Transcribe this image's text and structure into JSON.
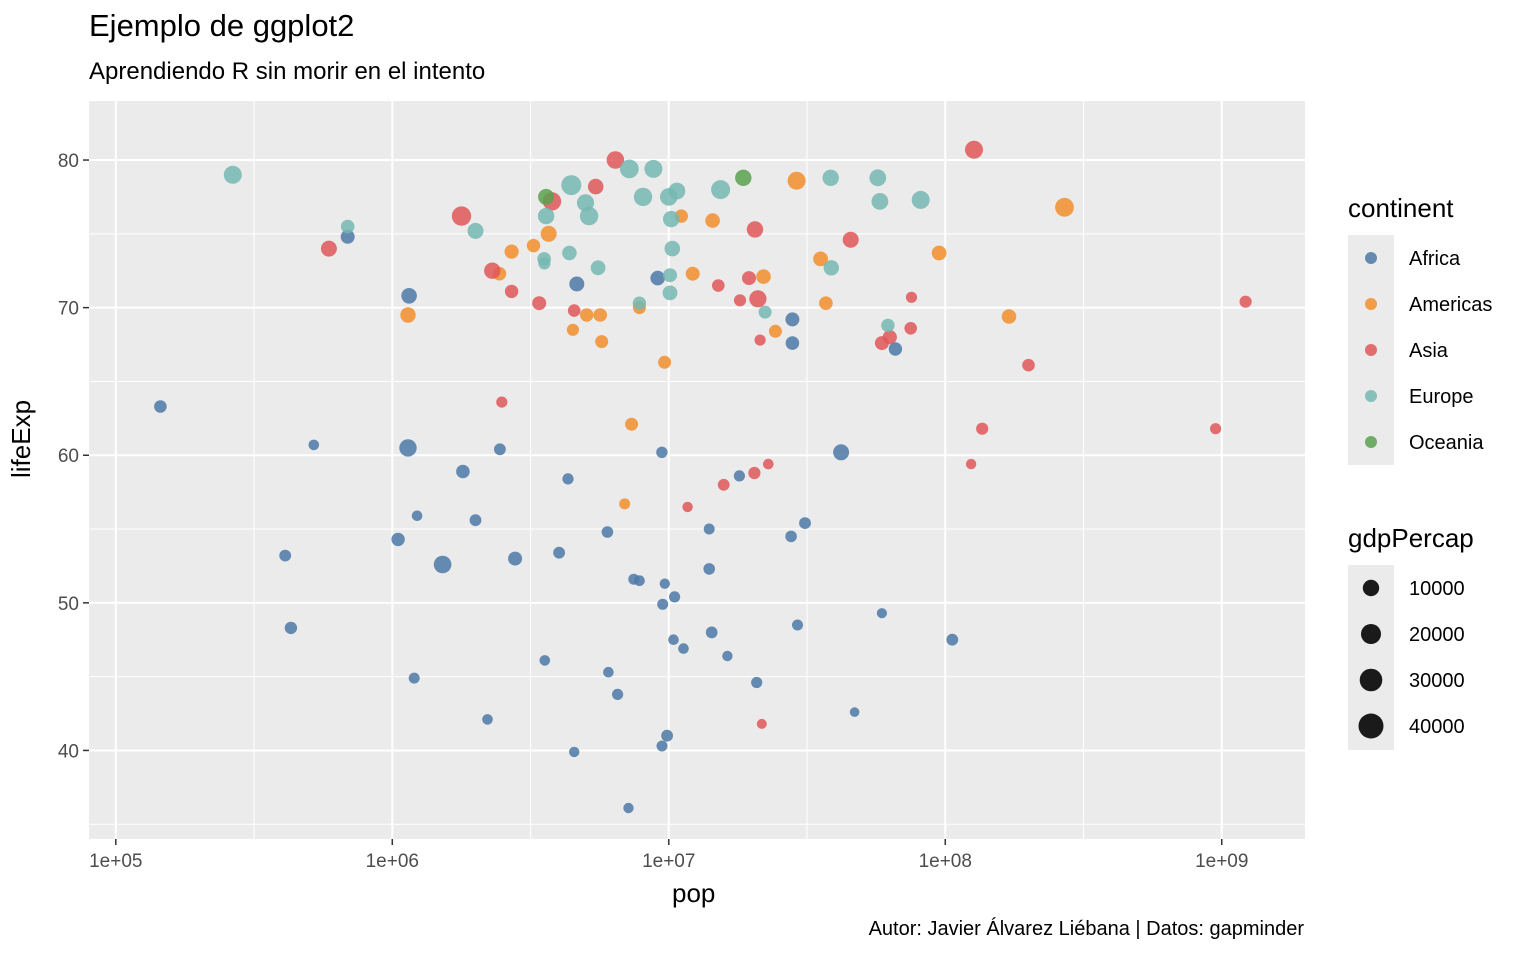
{
  "chart_data": {
    "type": "scatter",
    "title": "Ejemplo de ggplot2",
    "subtitle": "Aprendiendo R sin morir en el intento",
    "caption": "Autor: Javier Álvarez Liébana | Datos: gapminder",
    "xlabel": "pop",
    "ylabel": "lifeExp",
    "x_scale": "log10",
    "xlim": [
      80000,
      2000000000
    ],
    "ylim": [
      34,
      84
    ],
    "x_ticks": [
      100000,
      1000000,
      10000000,
      100000000,
      1000000000
    ],
    "x_tick_labels": [
      "1e+05",
      "1e+06",
      "1e+07",
      "1e+08",
      "1e+09"
    ],
    "y_ticks": [
      40,
      50,
      60,
      70,
      80
    ],
    "y_tick_labels": [
      "40",
      "50",
      "60",
      "70",
      "80"
    ],
    "grid": true,
    "legend_position": "right",
    "color_legend": {
      "title": "continent",
      "entries": [
        {
          "label": "Africa",
          "color": "#4e79a7"
        },
        {
          "label": "Americas",
          "color": "#f28e2b"
        },
        {
          "label": "Asia",
          "color": "#e15759"
        },
        {
          "label": "Europe",
          "color": "#76b7b2"
        },
        {
          "label": "Oceania",
          "color": "#59a14f"
        }
      ]
    },
    "size_legend": {
      "title": "gdpPercap",
      "entries": [
        {
          "label": "10000",
          "value": 10000
        },
        {
          "label": "20000",
          "value": 20000
        },
        {
          "label": "30000",
          "value": 30000
        },
        {
          "label": "40000",
          "value": 40000
        }
      ]
    },
    "series": [
      {
        "name": "Africa",
        "points": [
          [
            145000,
            63.3,
            3000
          ],
          [
            520000,
            60.7,
            1000
          ],
          [
            410000,
            53.2,
            2000
          ],
          [
            430000,
            48.3,
            2800
          ],
          [
            690000,
            74.8,
            5000
          ],
          [
            1150000,
            70.8,
            8000
          ],
          [
            1140000,
            60.5,
            12500
          ],
          [
            1230000,
            55.9,
            1000
          ],
          [
            1200000,
            44.9,
            1200
          ],
          [
            1050000,
            54.3,
            4000
          ],
          [
            1520000,
            52.6,
            13000
          ],
          [
            1800000,
            58.9,
            4500
          ],
          [
            2000000,
            55.6,
            2000
          ],
          [
            2210000,
            42.1,
            1000
          ],
          [
            2450000,
            60.4,
            2000
          ],
          [
            2780000,
            53.0,
            5000
          ],
          [
            3560000,
            46.1,
            1000
          ],
          [
            4010000,
            53.4,
            2000
          ],
          [
            4320000,
            58.4,
            1500
          ],
          [
            4550000,
            39.9,
            800
          ],
          [
            4650000,
            71.6,
            7000
          ],
          [
            6000000,
            54.8,
            1800
          ],
          [
            6050000,
            45.3,
            900
          ],
          [
            6530000,
            43.8,
            1400
          ],
          [
            7150000,
            36.1,
            800
          ],
          [
            7470000,
            51.6,
            1200
          ],
          [
            7830000,
            51.5,
            1100
          ],
          [
            9120000,
            72.0,
            6000
          ],
          [
            9440000,
            60.2,
            1600
          ],
          [
            9510000,
            49.9,
            1300
          ],
          [
            9670000,
            51.3,
            800
          ],
          [
            9450000,
            40.3,
            1200
          ],
          [
            9860000,
            41.0,
            2000
          ],
          [
            10500000,
            50.4,
            1400
          ],
          [
            10400000,
            47.5,
            1000
          ],
          [
            11300000,
            46.9,
            1000
          ],
          [
            14000000,
            55.0,
            1200
          ],
          [
            14000000,
            52.3,
            1800
          ],
          [
            14300000,
            48.0,
            2000
          ],
          [
            16300000,
            46.4,
            800
          ],
          [
            18000000,
            58.6,
            1500
          ],
          [
            20800000,
            44.6,
            1400
          ],
          [
            28000000,
            69.2,
            5000
          ],
          [
            28000000,
            67.6,
            4500
          ],
          [
            27700000,
            54.5,
            1800
          ],
          [
            29200000,
            48.5,
            1300
          ],
          [
            31100000,
            55.4,
            2000
          ],
          [
            42000000,
            60.2,
            9000
          ],
          [
            47000000,
            42.6,
            400
          ],
          [
            59000000,
            49.3,
            700
          ],
          [
            66000000,
            67.2,
            4000
          ],
          [
            106000000,
            47.5,
            2000
          ]
        ]
      },
      {
        "name": "Americas",
        "points": [
          [
            1140000,
            69.5,
            7500
          ],
          [
            2440000,
            72.3,
            4500
          ],
          [
            2700000,
            73.8,
            5500
          ],
          [
            3240000,
            74.2,
            4000
          ],
          [
            3680000,
            75.0,
            9000
          ],
          [
            4500000,
            68.5,
            2500
          ],
          [
            5050000,
            69.5,
            4000
          ],
          [
            5650000,
            69.5,
            4500
          ],
          [
            5720000,
            67.7,
            3500
          ],
          [
            6930000,
            56.7,
            1200
          ],
          [
            7340000,
            62.1,
            3500
          ],
          [
            7830000,
            70.0,
            3500
          ],
          [
            9660000,
            66.3,
            3500
          ],
          [
            11100000,
            76.2,
            4000
          ],
          [
            12200000,
            72.3,
            5000
          ],
          [
            14400000,
            75.9,
            6000
          ],
          [
            22000000,
            72.1,
            6000
          ],
          [
            24300000,
            68.4,
            3500
          ],
          [
            29000000,
            78.6,
            14000
          ],
          [
            35400000,
            73.3,
            6500
          ],
          [
            37000000,
            70.3,
            4500
          ],
          [
            95000000,
            73.7,
            6500
          ],
          [
            170000000,
            69.4,
            6000
          ],
          [
            270000000,
            76.8,
            16000
          ]
        ]
      },
      {
        "name": "Asia",
        "points": [
          [
            590000,
            74.0,
            9000
          ],
          [
            1780000,
            76.2,
            18000
          ],
          [
            2300000,
            72.5,
            10000
          ],
          [
            2490000,
            63.6,
            1500
          ],
          [
            2700000,
            71.1,
            4000
          ],
          [
            3400000,
            70.3,
            5000
          ],
          [
            3780000,
            77.2,
            15000
          ],
          [
            4550000,
            69.8,
            3000
          ],
          [
            5440000,
            78.2,
            8000
          ],
          [
            6410000,
            80.0,
            13000
          ],
          [
            11700000,
            56.5,
            800
          ],
          [
            15100000,
            71.5,
            3000
          ],
          [
            15800000,
            58.0,
            2000
          ],
          [
            18100000,
            70.5,
            2500
          ],
          [
            19500000,
            72.0,
            5000
          ],
          [
            20400000,
            58.8,
            2500
          ],
          [
            20500000,
            75.3,
            10000
          ],
          [
            21000000,
            70.6,
            12000
          ],
          [
            21400000,
            67.8,
            1500
          ],
          [
            21700000,
            41.8,
            600
          ],
          [
            22900000,
            59.4,
            1000
          ],
          [
            45500000,
            74.6,
            9000
          ],
          [
            59000000,
            67.6,
            5000
          ],
          [
            63000000,
            68.0,
            5500
          ],
          [
            75000000,
            68.6,
            3000
          ],
          [
            75500000,
            70.7,
            1500
          ],
          [
            124000000,
            59.4,
            800
          ],
          [
            127000000,
            80.7,
            14000
          ],
          [
            136000000,
            61.8,
            2500
          ],
          [
            200000000,
            66.1,
            3000
          ],
          [
            950000000,
            61.8,
            1500
          ],
          [
            1220000000,
            70.4,
            2500
          ]
        ]
      },
      {
        "name": "Europe",
        "points": [
          [
            265000,
            79.0,
            14000
          ],
          [
            690000,
            75.5,
            4500
          ],
          [
            2000000,
            75.2,
            9000
          ],
          [
            3540000,
            73.3,
            4500
          ],
          [
            3550000,
            73.0,
            2500
          ],
          [
            3600000,
            76.2,
            10000
          ],
          [
            4370000,
            73.7,
            6000
          ],
          [
            4440000,
            78.3,
            20000
          ],
          [
            5000000,
            77.1,
            12000
          ],
          [
            5150000,
            76.2,
            15000
          ],
          [
            5550000,
            72.7,
            6500
          ],
          [
            7200000,
            79.4,
            16000
          ],
          [
            7830000,
            70.3,
            4000
          ],
          [
            8070000,
            77.5,
            15000
          ],
          [
            8800000,
            79.4,
            14000
          ],
          [
            10000000,
            77.5,
            13000
          ],
          [
            10100000,
            71.0,
            6500
          ],
          [
            10100000,
            72.2,
            5000
          ],
          [
            10200000,
            76.0,
            10000
          ],
          [
            10300000,
            74.0,
            8000
          ],
          [
            10700000,
            77.9,
            11000
          ],
          [
            15400000,
            78.0,
            17000
          ],
          [
            22300000,
            69.7,
            3500
          ],
          [
            38500000,
            78.8,
            10000
          ],
          [
            38700000,
            72.7,
            7500
          ],
          [
            57000000,
            78.8,
            11000
          ],
          [
            58000000,
            77.2,
            11000
          ],
          [
            62000000,
            68.8,
            4000
          ],
          [
            81500000,
            77.3,
            14000
          ]
        ]
      },
      {
        "name": "Oceania",
        "points": [
          [
            3600000,
            77.5,
            9000
          ],
          [
            18600000,
            78.8,
            10000
          ]
        ]
      }
    ]
  }
}
